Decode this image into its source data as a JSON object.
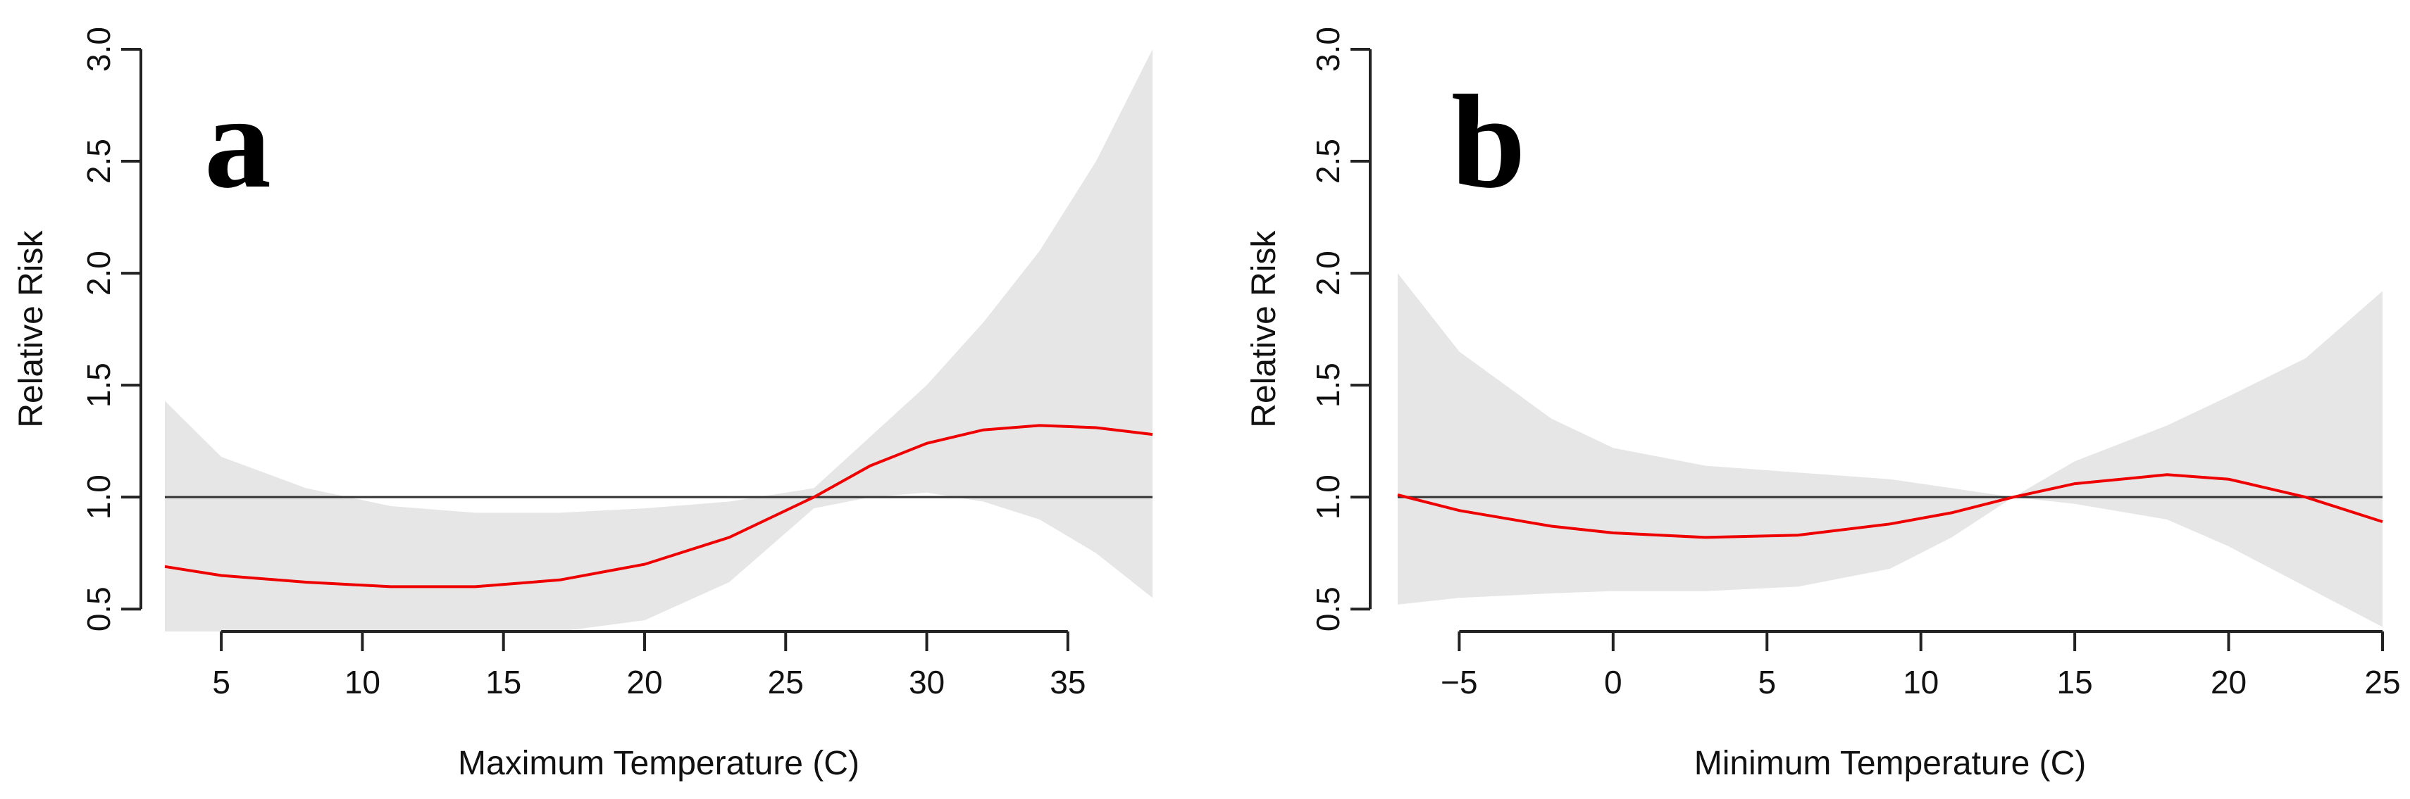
{
  "chart_data": [
    {
      "type": "line",
      "panel_label": "a",
      "xlabel": "Maximum Temperature (C)",
      "ylabel": "Relative Risk",
      "xlim": [
        3,
        38
      ],
      "ylim": [
        0.4,
        3.0
      ],
      "xticks": [
        5,
        10,
        15,
        20,
        25,
        30,
        35
      ],
      "yticks": [
        0.5,
        1.0,
        1.5,
        2.0,
        2.5,
        3.0
      ],
      "xtick_labels": [
        "5",
        "10",
        "15",
        "20",
        "25",
        "30",
        "35"
      ],
      "ytick_labels": [
        "0.5",
        "1.0",
        "1.5",
        "2.0",
        "2.5",
        "3.0"
      ],
      "reference_line": 1.0,
      "line_color": "#ee0000",
      "band_color": "#e6e6e6",
      "series": [
        {
          "x": [
            3,
            5,
            8,
            11,
            14,
            17,
            20,
            23,
            26,
            28,
            30,
            32,
            34,
            36,
            38
          ],
          "y": [
            0.69,
            0.65,
            0.62,
            0.6,
            0.6,
            0.63,
            0.7,
            0.82,
            1.0,
            1.14,
            1.24,
            1.3,
            1.32,
            1.31,
            1.28
          ],
          "lower": [
            0.4,
            0.4,
            0.4,
            0.4,
            0.4,
            0.4,
            0.45,
            0.62,
            0.95,
            1.0,
            1.02,
            0.98,
            0.9,
            0.75,
            0.55
          ],
          "upper": [
            1.43,
            1.18,
            1.04,
            0.96,
            0.93,
            0.93,
            0.95,
            0.98,
            1.04,
            1.27,
            1.5,
            1.78,
            2.1,
            2.5,
            3.0
          ]
        }
      ]
    },
    {
      "type": "line",
      "panel_label": "b",
      "xlabel": "Minimum Temperature (C)",
      "ylabel": "Relative Risk",
      "xlim": [
        -7,
        25
      ],
      "ylim": [
        0.4,
        3.0
      ],
      "xticks": [
        -5,
        0,
        5,
        10,
        15,
        20,
        25
      ],
      "yticks": [
        0.5,
        1.0,
        1.5,
        2.0,
        2.5,
        3.0
      ],
      "xtick_labels": [
        "−5",
        "0",
        "5",
        "10",
        "15",
        "20",
        "25"
      ],
      "ytick_labels": [
        "0.5",
        "1.0",
        "1.5",
        "2.0",
        "2.5",
        "3.0"
      ],
      "reference_line": 1.0,
      "line_color": "#ee0000",
      "band_color": "#e6e6e6",
      "series": [
        {
          "x": [
            -7,
            -5,
            -2,
            0,
            3,
            6,
            9,
            11,
            13,
            15,
            18,
            20,
            22.5,
            25
          ],
          "y": [
            1.01,
            0.94,
            0.87,
            0.84,
            0.82,
            0.83,
            0.88,
            0.93,
            1.0,
            1.06,
            1.1,
            1.08,
            1.0,
            0.89
          ],
          "lower": [
            0.52,
            0.55,
            0.57,
            0.58,
            0.58,
            0.6,
            0.68,
            0.82,
            1.0,
            0.97,
            0.9,
            0.78,
            0.6,
            0.42
          ],
          "upper": [
            2.0,
            1.65,
            1.35,
            1.22,
            1.14,
            1.11,
            1.08,
            1.04,
            1.0,
            1.16,
            1.32,
            1.45,
            1.62,
            1.92
          ]
        }
      ]
    }
  ]
}
